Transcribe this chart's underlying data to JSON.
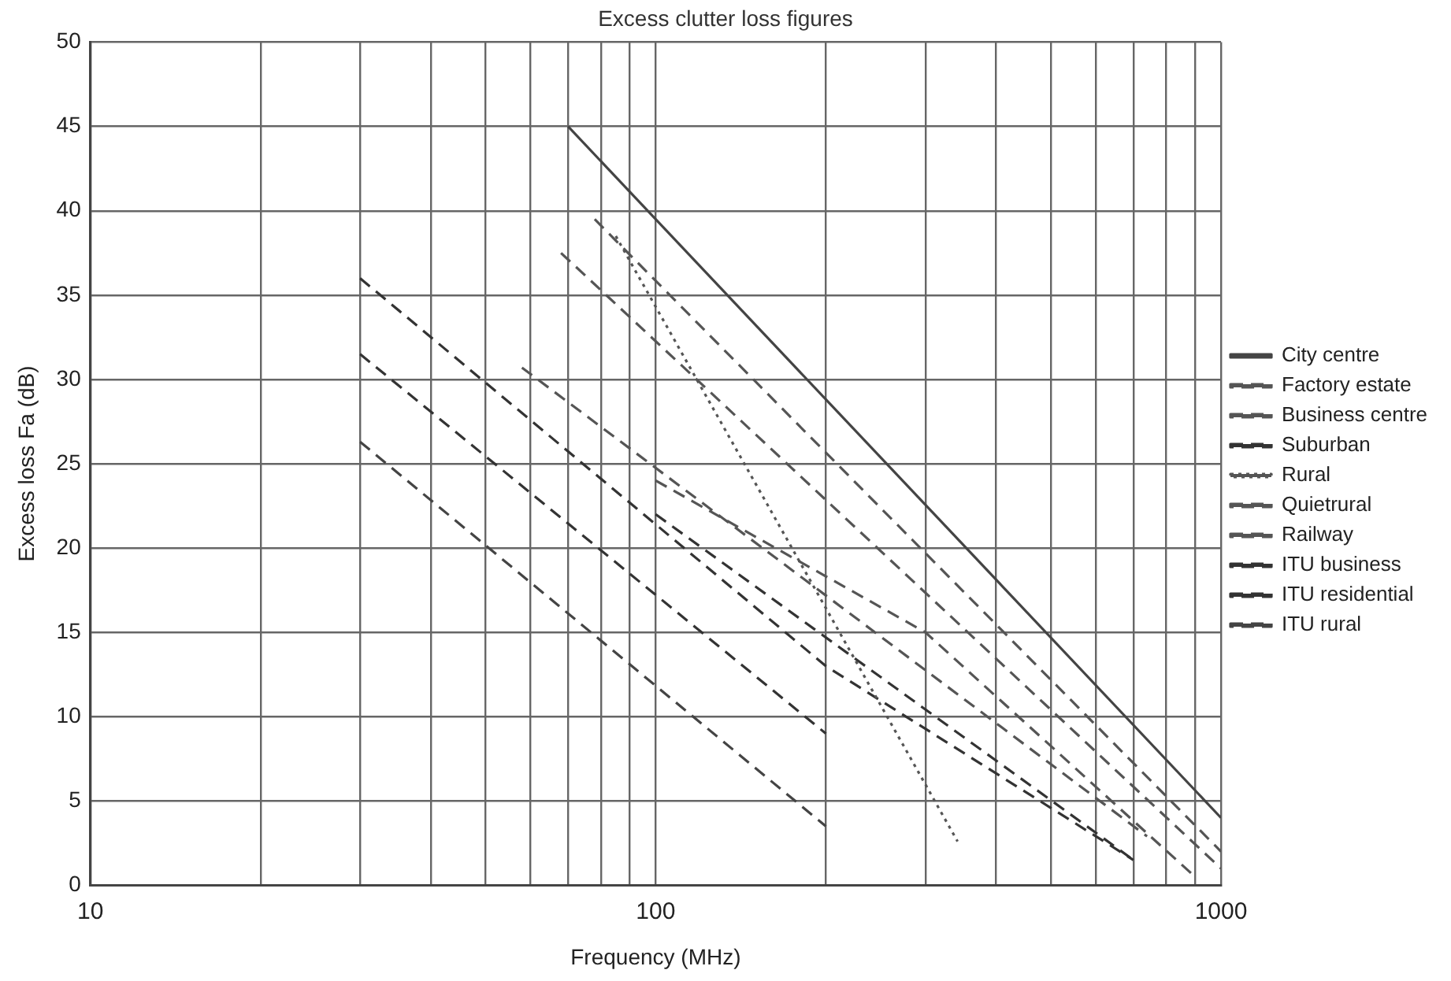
{
  "chart_data": {
    "type": "line",
    "title": "Excess clutter loss figures",
    "xlabel": "Frequency (MHz)",
    "ylabel": "Excess loss Fa (dB)",
    "log": "x",
    "xlim": [
      10,
      1000
    ],
    "ylim": [
      0,
      50
    ],
    "xticks": [
      10,
      {
        "value": 20,
        "label": null
      },
      {
        "value": 30,
        "label": null
      },
      {
        "value": 40,
        "label": null
      },
      {
        "value": 50,
        "label": null
      },
      {
        "value": 60,
        "label": null
      },
      {
        "value": 70,
        "label": null
      },
      {
        "value": 80,
        "label": null
      },
      {
        "value": 90,
        "label": null
      },
      100,
      {
        "value": 200,
        "label": null
      },
      {
        "value": 300,
        "label": null
      },
      {
        "value": 400,
        "label": null
      },
      {
        "value": 500,
        "label": null
      },
      {
        "value": 600,
        "label": null
      },
      {
        "value": 700,
        "label": null
      },
      {
        "value": 800,
        "label": null
      },
      {
        "value": 900,
        "label": null
      },
      1000
    ],
    "yticks": [
      0,
      5,
      10,
      15,
      20,
      25,
      30,
      35,
      40,
      45,
      50
    ],
    "grid": true,
    "legend": "right",
    "marker": "none",
    "series": [
      {
        "name": "City centre",
        "color": "#444444",
        "line_style": "solid",
        "x": [
          70,
          1000
        ],
        "values": [
          45,
          4
        ]
      },
      {
        "name": "Factory estate",
        "color": "#555555",
        "line_style": "dashed",
        "x": [
          78,
          1000
        ],
        "values": [
          39.5,
          2
        ]
      },
      {
        "name": "Business centre",
        "color": "#555555",
        "line_style": "dashed",
        "x": [
          68,
          1000
        ],
        "values": [
          37.5,
          1
        ]
      },
      {
        "name": "Suburban",
        "color": "#333333",
        "line_style": "dashed",
        "x": [
          100,
          700
        ],
        "values": [
          22,
          1.5
        ]
      },
      {
        "name": "Rural",
        "color": "#555555",
        "line_style": "dotted",
        "x": [
          85,
          342
        ],
        "values": [
          38.5,
          2.6
        ]
      },
      {
        "name": "Quietrural",
        "color": "#555555",
        "line_style": "dashed",
        "x": [
          100,
          300,
          900
        ],
        "values": [
          24,
          15,
          0.5
        ]
      },
      {
        "name": "Railway",
        "color": "#555555",
        "line_style": "dashed",
        "x": [
          58,
          740
        ],
        "values": [
          30.7,
          2.9
        ]
      },
      {
        "name": "ITU business",
        "color": "#333333",
        "line_style": "dashed",
        "x": [
          30,
          200,
          700
        ],
        "values": [
          36,
          13,
          1.5
        ]
      },
      {
        "name": "ITU residential",
        "color": "#333333",
        "line_style": "dashed",
        "x": [
          30,
          200
        ],
        "values": [
          31.5,
          9
        ]
      },
      {
        "name": "ITU rural",
        "color": "#444444",
        "line_style": "dashed",
        "x": [
          30,
          200
        ],
        "values": [
          26.3,
          3.5
        ]
      }
    ]
  }
}
